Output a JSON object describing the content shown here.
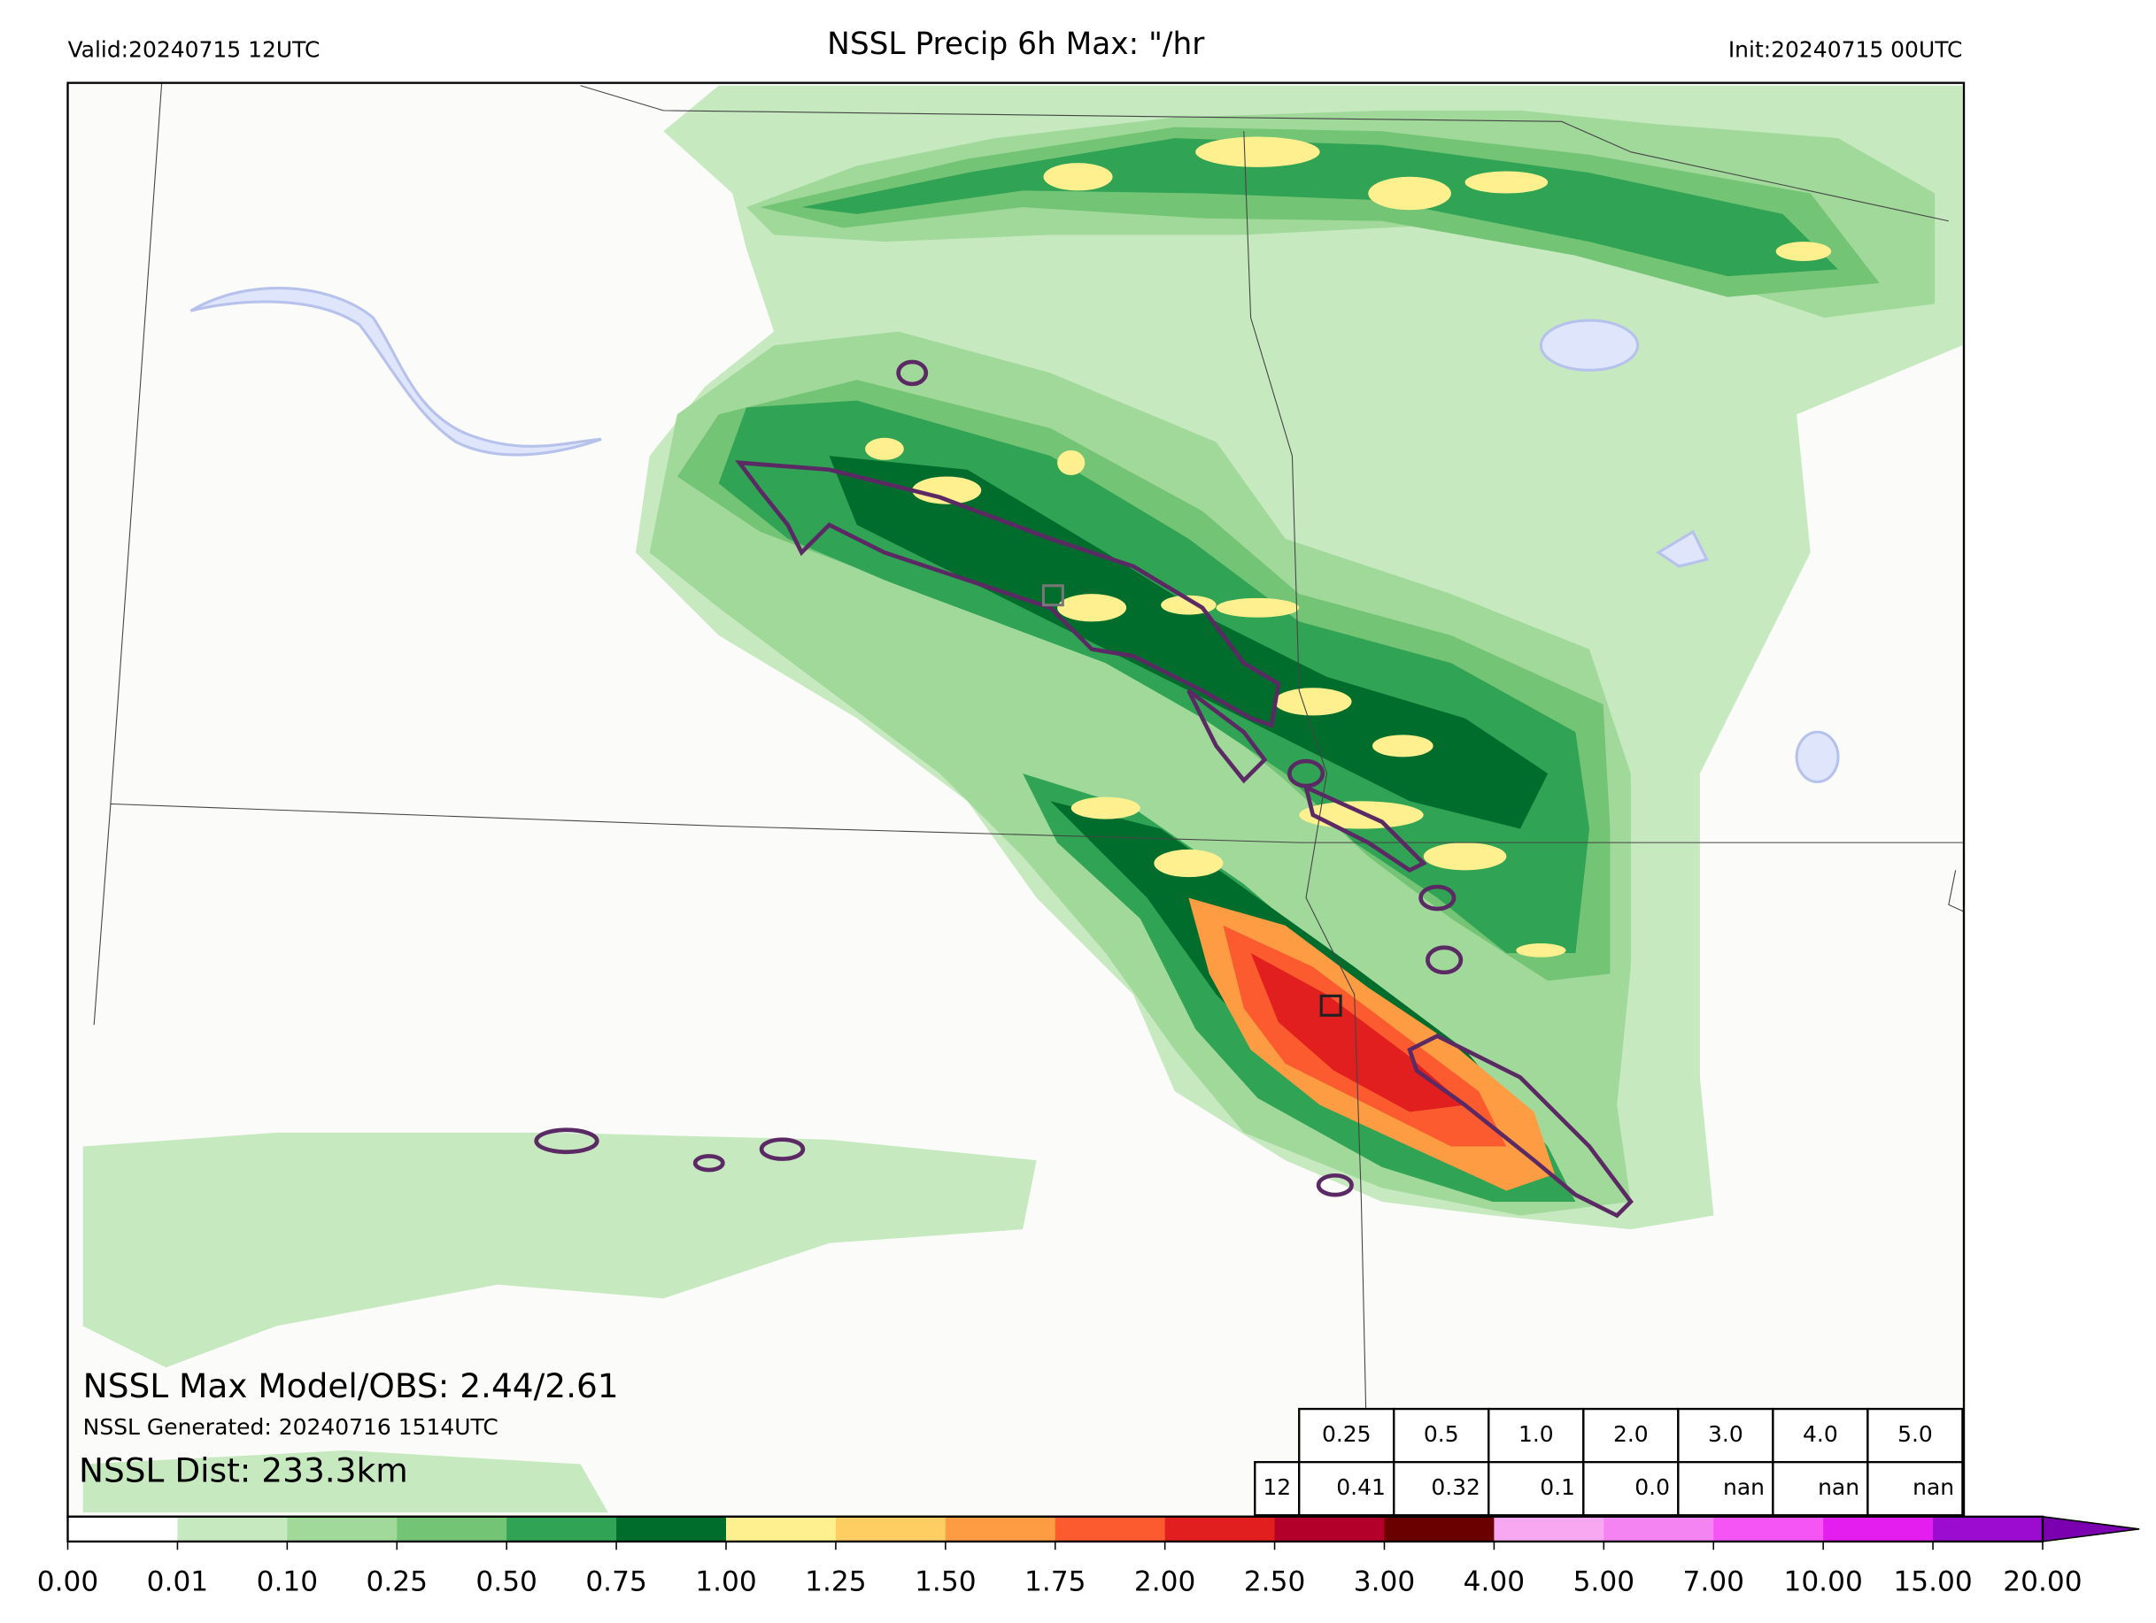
{
  "header": {
    "valid": "Valid:20240715 12UTC",
    "title": "NSSL Precip 6h Max: \"/hr",
    "init": "Init:20240715 00UTC"
  },
  "annotations": {
    "max": "NSSL Max Model/OBS: 2.44/2.61",
    "generated": "NSSL Generated: 20240716 1514UTC",
    "dist": "NSSL Dist: 233.3km"
  },
  "table": {
    "header": [
      "0.25",
      "0.5",
      "1.0",
      "2.0",
      "3.0",
      "4.0",
      "5.0"
    ],
    "row_label": "12",
    "row": [
      "0.41",
      "0.32",
      "0.1",
      "0.0",
      "nan",
      "nan",
      "nan"
    ]
  },
  "colorbar": {
    "labels": [
      "0.00",
      "0.01",
      "0.10",
      "0.25",
      "0.50",
      "0.75",
      "1.00",
      "1.25",
      "1.50",
      "1.75",
      "2.00",
      "2.50",
      "3.00",
      "4.00",
      "5.00",
      "7.00",
      "10.00",
      "15.00",
      "20.00"
    ],
    "colors": [
      "#ffffff",
      "#c7e9c0",
      "#a1d99b",
      "#74c476",
      "#31a354",
      "#006d2c",
      "#fff08f",
      "#fece63",
      "#fd9c43",
      "#fc5b30",
      "#e21f1f",
      "#b3002a",
      "#6a0000",
      "#f8a8f0",
      "#f384f2",
      "#f455f4",
      "#e51ef0",
      "#9b0bd0"
    ],
    "extend_color": "#7a00b0"
  }
}
